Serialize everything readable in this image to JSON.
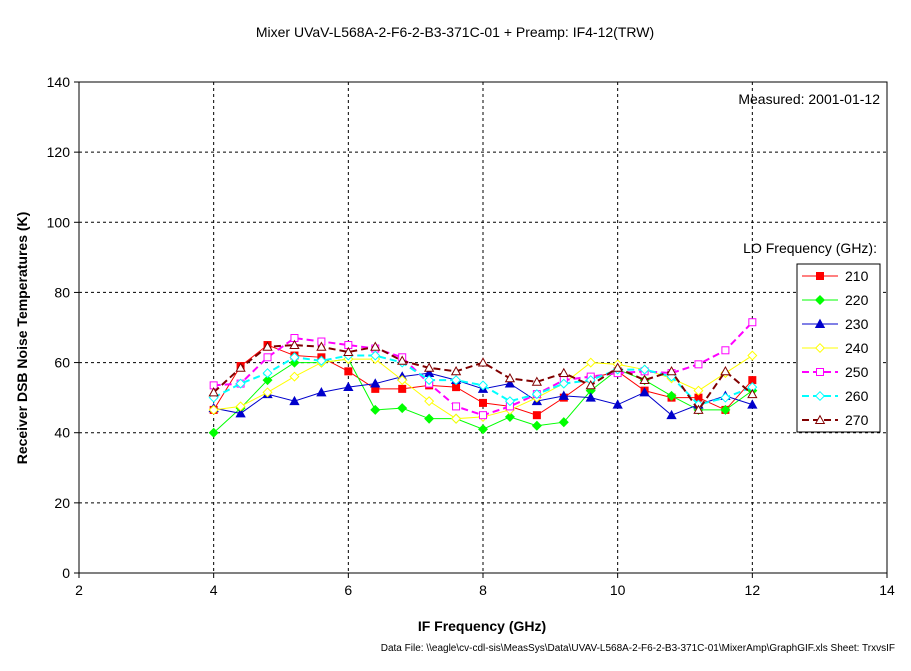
{
  "chart_data": {
    "type": "line",
    "title": "Mixer UVaV-L568A-2-F6-2-B3-371C-01 + Preamp: IF4-12(TRW)",
    "xlabel": "IF Frequency (GHz)",
    "ylabel": "Receiver DSB Noise Temperatures (K)",
    "xlim": [
      2,
      14
    ],
    "ylim": [
      0,
      140
    ],
    "xticks": [
      2,
      4,
      6,
      8,
      10,
      12,
      14
    ],
    "yticks": [
      0,
      20,
      40,
      60,
      80,
      100,
      120,
      140
    ],
    "grid": true,
    "annotation": "Measured: 2001-01-12",
    "legend_title": "LO Frequency (GHz):",
    "legend_position": "right",
    "x": [
      4.0,
      4.4,
      4.8,
      5.2,
      5.6,
      6.0,
      6.4,
      6.8,
      7.2,
      7.6,
      8.0,
      8.4,
      8.8,
      9.2,
      9.6,
      10.0,
      10.4,
      10.8,
      11.2,
      11.6,
      12.0
    ],
    "series": [
      {
        "name": "210",
        "color": "#ff0000",
        "marker": "filled-square",
        "dash": "solid",
        "values": [
          46.5,
          59,
          65,
          62,
          61.5,
          57.5,
          52.5,
          52.5,
          53.5,
          53,
          48.5,
          47.5,
          45,
          50,
          55.5,
          57.5,
          52,
          50,
          50,
          46.5,
          55
        ]
      },
      {
        "name": "220",
        "color": "#00ff00",
        "marker": "filled-diamond",
        "dash": "solid",
        "values": [
          40,
          47,
          55,
          60,
          60,
          61,
          46.5,
          47,
          44,
          44,
          41,
          44.5,
          42,
          43,
          52,
          58,
          55,
          50.5,
          46.5,
          46.5,
          52
        ]
      },
      {
        "name": "230",
        "color": "#0000cc",
        "marker": "filled-triangle",
        "dash": "solid",
        "values": [
          47,
          45.5,
          51,
          49,
          51.5,
          53,
          54,
          56,
          57,
          55,
          52.5,
          54,
          49,
          50.5,
          50,
          48,
          51.5,
          45,
          48,
          50.5,
          48
        ]
      },
      {
        "name": "240",
        "color": "#ffff00",
        "marker": "open-diamond",
        "dash": "solid",
        "values": [
          46.5,
          47.5,
          51.5,
          56,
          60,
          61,
          61,
          55,
          49,
          44,
          44.5,
          46.5,
          50,
          54,
          60,
          59.5,
          58,
          55.5,
          52,
          57,
          62
        ]
      },
      {
        "name": "250",
        "color": "#ff00ff",
        "marker": "open-square",
        "dash": "dash",
        "values": [
          53.5,
          54,
          61.5,
          67,
          66,
          65,
          64,
          61.5,
          54,
          47.5,
          45,
          47.5,
          51,
          55,
          56,
          57,
          57.5,
          57,
          59.5,
          63.5,
          71.5
        ]
      },
      {
        "name": "260",
        "color": "#00ffff",
        "marker": "open-diamond",
        "dash": "dash",
        "values": [
          50,
          54,
          57,
          61.5,
          60.5,
          62,
          62,
          60,
          55,
          55,
          53.5,
          49,
          51,
          54,
          55,
          58,
          58,
          56,
          48,
          50,
          53
        ]
      },
      {
        "name": "270",
        "color": "#800000",
        "marker": "open-triangle",
        "dash": "dash",
        "values": [
          51.5,
          58.5,
          64.5,
          65,
          64.5,
          63,
          64.5,
          60.5,
          58.5,
          57.5,
          60,
          55.5,
          54.5,
          57,
          53.5,
          58.5,
          55,
          57.5,
          46.5,
          57.5,
          51
        ]
      }
    ]
  },
  "footer": "Data File: \\\\eagle\\cv-cdl-sis\\MeasSys\\Data\\UVAV-L568A-2-F6-2-B3-371C-01\\MixerAmp\\GraphGIF.xls  Sheet: TrxvsIF"
}
